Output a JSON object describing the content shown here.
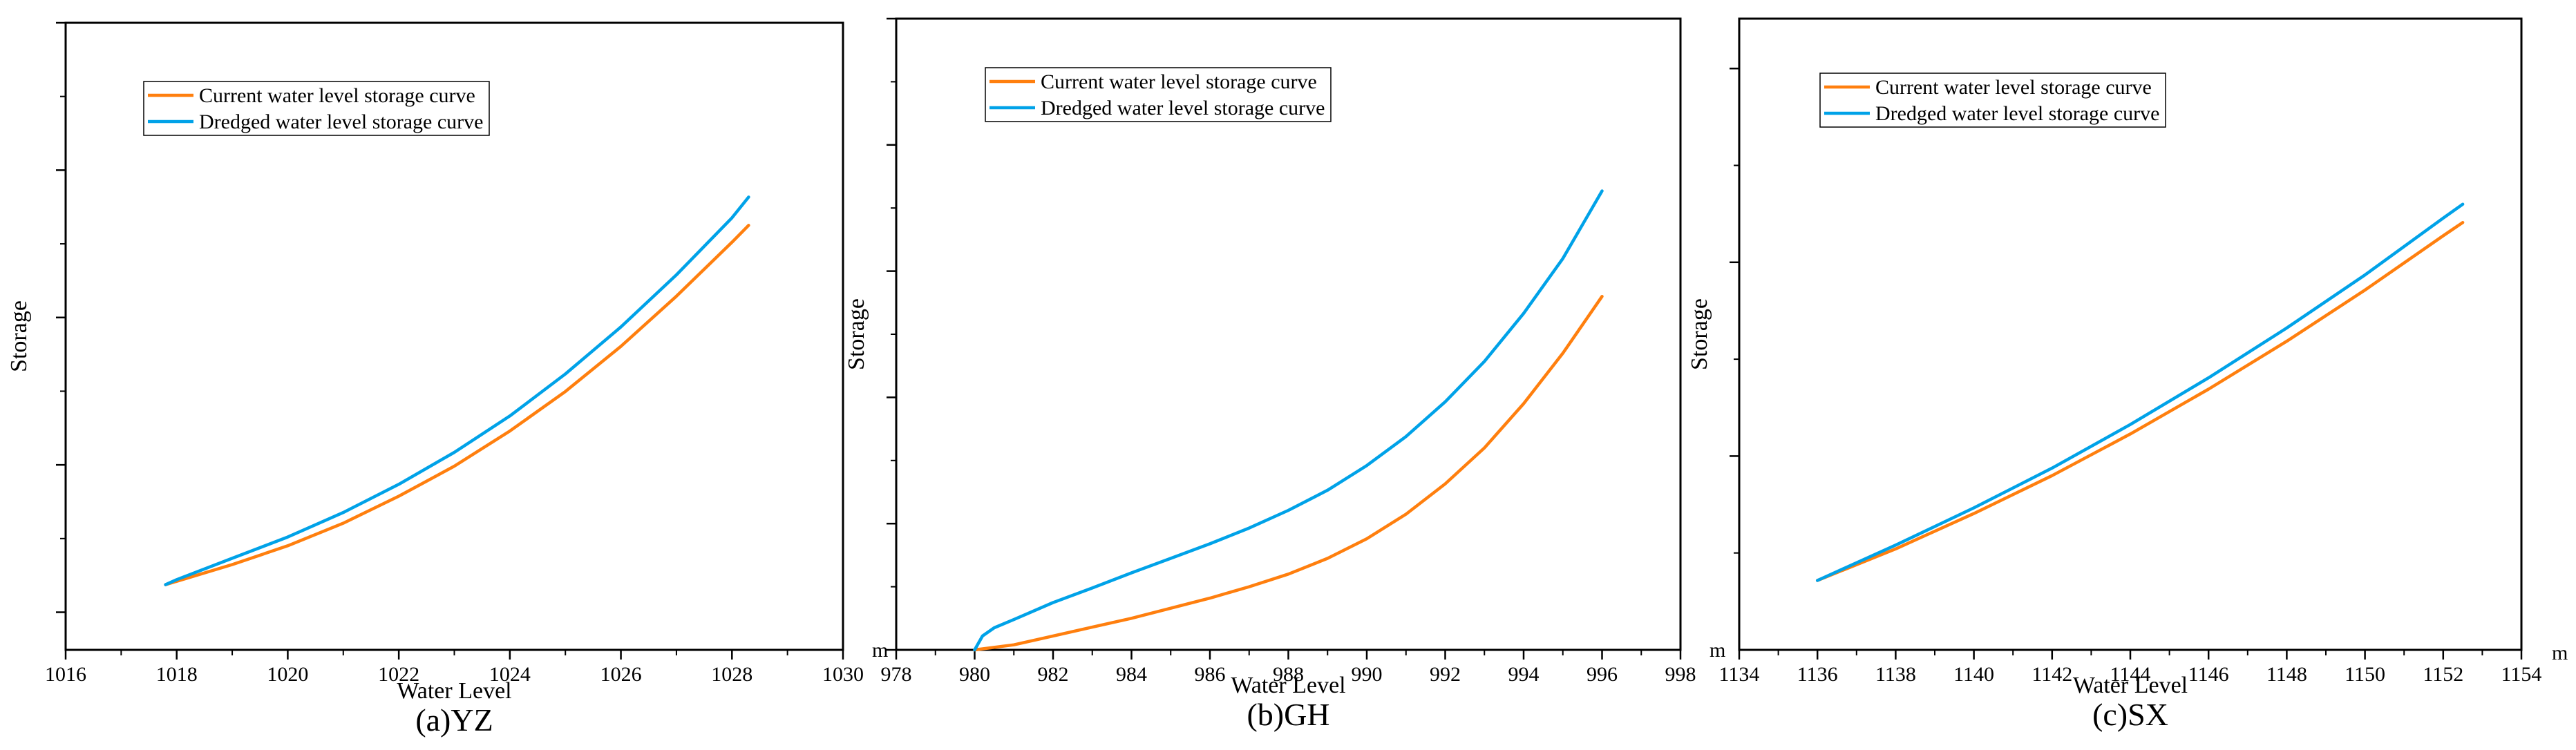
{
  "colors": {
    "current": "#ff7f0e",
    "dredged": "#00a2e8",
    "axis": "#000000"
  },
  "chart_data": [
    {
      "type": "line",
      "caption": "(a)YZ",
      "xlabel": "Water Level",
      "ylabel": "Storage",
      "y_unit": "",
      "xlim": [
        1016,
        1030
      ],
      "ylim": [
        0,
        1
      ],
      "x_ticks": [
        1016,
        1018,
        1020,
        1022,
        1024,
        1026,
        1028,
        1030
      ],
      "y_major_ticks": [
        0.06,
        0.295,
        0.53,
        0.765,
        1.0
      ],
      "legend": "top-left",
      "series": [
        {
          "name": "Current water level storage curve",
          "color": "current",
          "x": [
            1017.8,
            1019,
            1020,
            1021,
            1022,
            1023,
            1024,
            1025,
            1026,
            1027,
            1028,
            1028.3
          ],
          "y": [
            0.104,
            0.136,
            0.166,
            0.202,
            0.245,
            0.293,
            0.349,
            0.412,
            0.484,
            0.564,
            0.65,
            0.677
          ]
        },
        {
          "name": "Dredged water level storage curve",
          "color": "dredged",
          "x": [
            1017.8,
            1018.0,
            1019,
            1020,
            1021,
            1022,
            1023,
            1024,
            1025,
            1026,
            1027,
            1028,
            1028.3
          ],
          "y": [
            0.104,
            0.112,
            0.146,
            0.18,
            0.219,
            0.264,
            0.315,
            0.373,
            0.44,
            0.515,
            0.598,
            0.689,
            0.722
          ]
        }
      ]
    },
    {
      "type": "line",
      "caption": "(b)GH",
      "xlabel": "Water Level",
      "ylabel": "Storage",
      "y_unit": "m",
      "xlim": [
        978,
        998
      ],
      "ylim": [
        0,
        1
      ],
      "x_ticks": [
        978,
        980,
        982,
        984,
        986,
        988,
        990,
        992,
        994,
        996,
        998
      ],
      "y_major_ticks": [
        0,
        0.2,
        0.4,
        0.6,
        0.8,
        1.0
      ],
      "legend": "top-left",
      "series": [
        {
          "name": "Current water level storage curve",
          "color": "current",
          "x": [
            980.0,
            981,
            982,
            983,
            984,
            985,
            986,
            987,
            988,
            989,
            990,
            991,
            992,
            993,
            994,
            995,
            996
          ],
          "y": [
            0.0,
            0.008,
            0.022,
            0.036,
            0.05,
            0.066,
            0.082,
            0.1,
            0.12,
            0.145,
            0.176,
            0.215,
            0.263,
            0.32,
            0.39,
            0.47,
            0.56
          ]
        },
        {
          "name": "Dredged water level storage curve",
          "color": "dredged",
          "x": [
            980.0,
            980.2,
            980.5,
            981,
            982,
            983,
            984,
            985,
            986,
            987,
            988,
            989,
            990,
            991,
            992,
            993,
            994,
            995,
            996
          ],
          "y": [
            0.0,
            0.022,
            0.035,
            0.048,
            0.075,
            0.098,
            0.122,
            0.145,
            0.168,
            0.193,
            0.221,
            0.253,
            0.292,
            0.338,
            0.393,
            0.457,
            0.533,
            0.62,
            0.727
          ]
        }
      ]
    },
    {
      "type": "line",
      "caption": "(c)SX",
      "xlabel": "Water Level",
      "ylabel": "Storage",
      "y_unit": "m",
      "x_unit": "m",
      "xlim": [
        1134,
        1154
      ],
      "ylim": [
        0,
        1
      ],
      "x_ticks": [
        1134,
        1136,
        1138,
        1140,
        1142,
        1144,
        1146,
        1148,
        1150,
        1152,
        1154
      ],
      "y_major_ticks": [
        0.307,
        0.614,
        0.921
      ],
      "legend": "top-left",
      "series": [
        {
          "name": "Current water level storage curve",
          "color": "current",
          "x": [
            1136,
            1138,
            1140,
            1142,
            1144,
            1146,
            1148,
            1150,
            1152,
            1152.5
          ],
          "y": [
            0.11,
            0.16,
            0.216,
            0.276,
            0.342,
            0.413,
            0.489,
            0.57,
            0.656,
            0.677
          ]
        },
        {
          "name": "Dredged water level storage curve",
          "color": "dredged",
          "x": [
            1136,
            1138,
            1140,
            1142,
            1144,
            1146,
            1148,
            1150,
            1152,
            1152.5
          ],
          "y": [
            0.11,
            0.166,
            0.225,
            0.288,
            0.357,
            0.431,
            0.51,
            0.594,
            0.684,
            0.706
          ]
        }
      ]
    }
  ]
}
